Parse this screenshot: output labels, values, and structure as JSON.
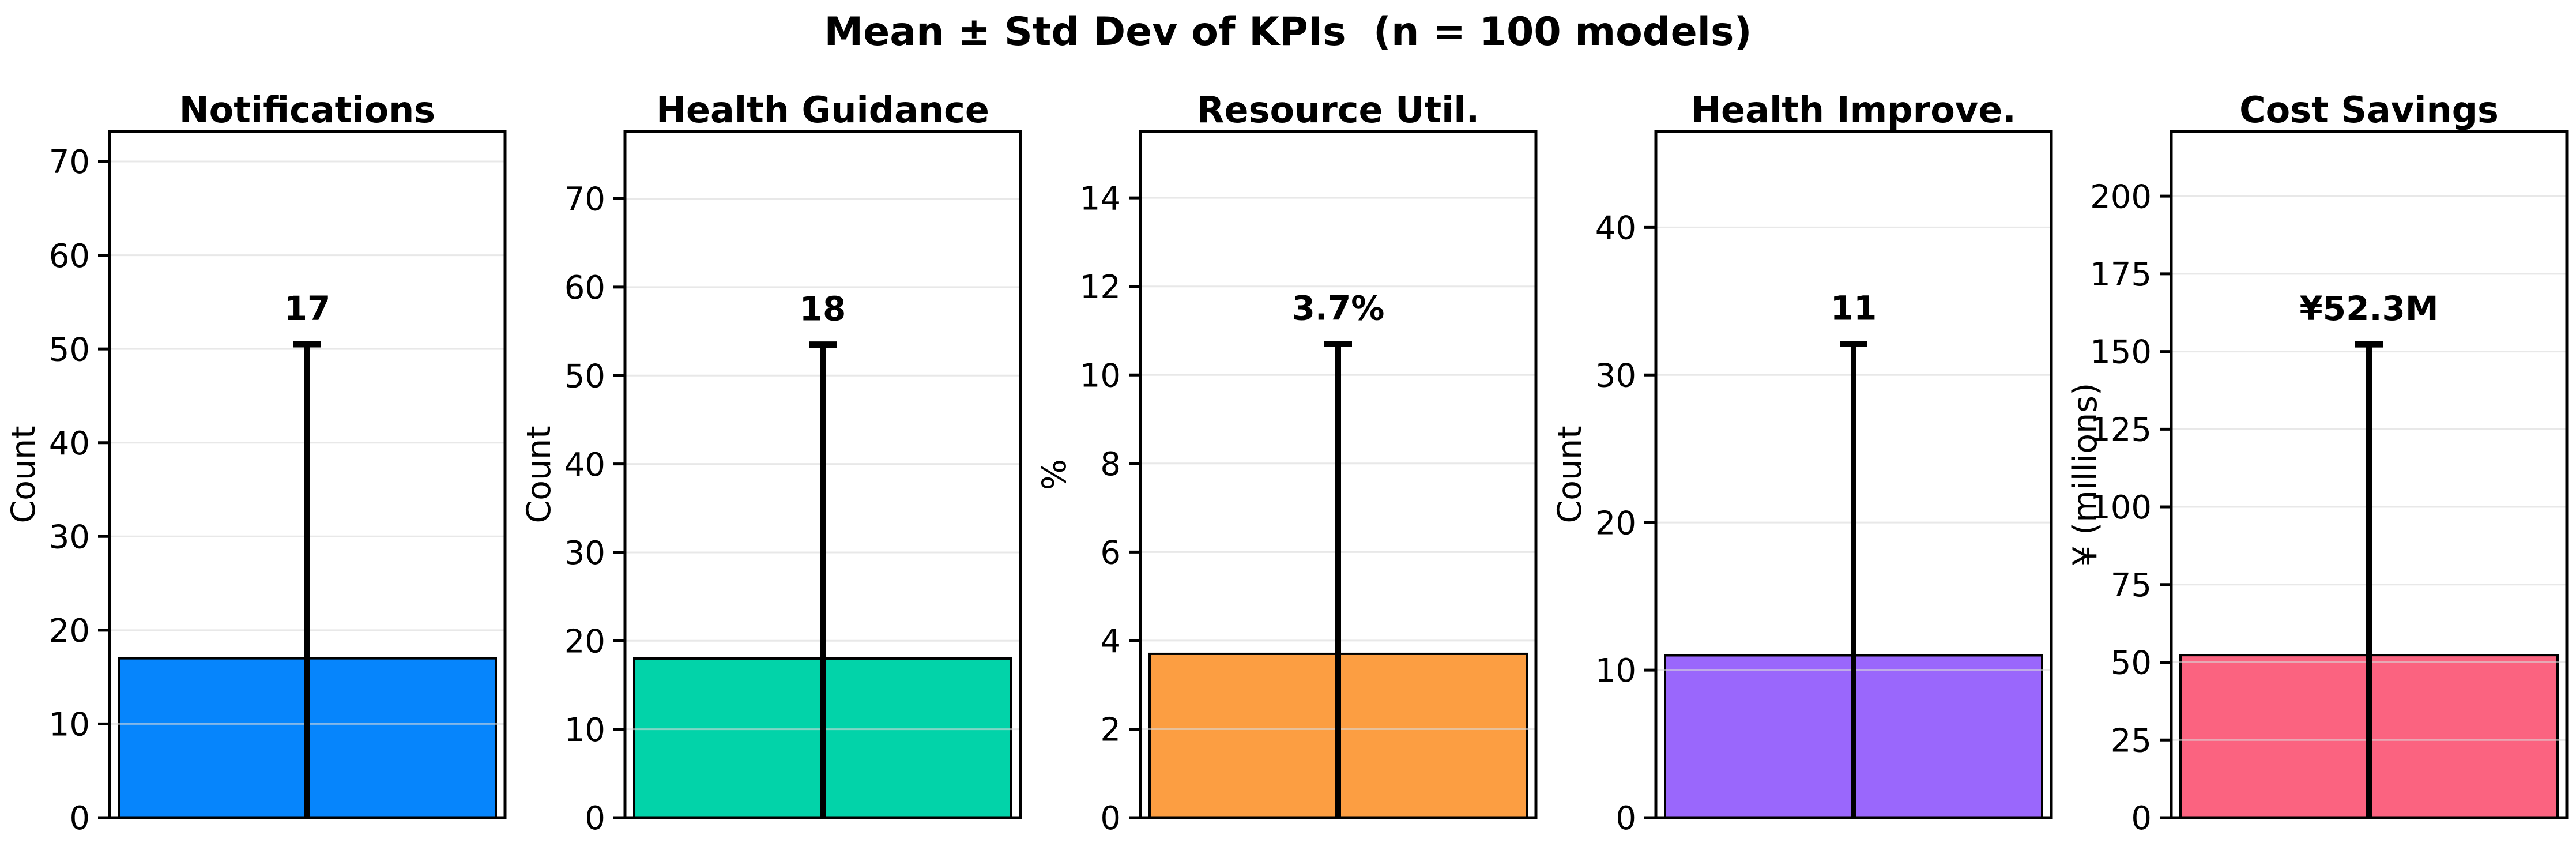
{
  "figure": {
    "title": "Mean ± Std Dev of KPIs  (n = 100 models)",
    "background_color": "#ffffff",
    "n_label_in_title": "n = 100 models"
  },
  "chart_data": [
    {
      "type": "bar",
      "title": "Notifications",
      "ylabel": "Count",
      "mean": 17,
      "value_label": "17",
      "error_top": 50.5,
      "std_estimate": 33.5,
      "bar_color": "#0685FC",
      "bar_edge_color": "#000000",
      "ylim": [
        0,
        73.2
      ],
      "yticks": [
        0,
        10,
        20,
        30,
        40,
        50,
        60,
        70
      ],
      "grid": true
    },
    {
      "type": "bar",
      "title": "Health Guidance",
      "ylabel": "Count",
      "mean": 18,
      "value_label": "18",
      "error_top": 53.5,
      "std_estimate": 35.5,
      "bar_color": "#02D3A9",
      "bar_edge_color": "#000000",
      "ylim": [
        0,
        77.6
      ],
      "yticks": [
        0,
        10,
        20,
        30,
        40,
        50,
        60,
        70
      ],
      "grid": true
    },
    {
      "type": "bar",
      "title": "Resource Util.",
      "ylabel": "%",
      "mean": 3.7,
      "value_label": "3.7%",
      "error_top": 10.7,
      "std_estimate": 7.0,
      "bar_color": "#FC9E42",
      "bar_edge_color": "#000000",
      "ylim": [
        0,
        15.5
      ],
      "yticks": [
        0,
        2,
        4,
        6,
        8,
        10,
        12,
        14
      ],
      "grid": true
    },
    {
      "type": "bar",
      "title": "Health Improve.",
      "ylabel": "Count",
      "mean": 11,
      "value_label": "11",
      "error_top": 32.1,
      "std_estimate": 21.1,
      "bar_color": "#9A67FC",
      "bar_edge_color": "#000000",
      "ylim": [
        0,
        46.5
      ],
      "yticks": [
        0,
        10,
        20,
        30,
        40
      ],
      "grid": true
    },
    {
      "type": "bar",
      "title": "Cost Savings",
      "ylabel": "¥ (millions)",
      "mean": 52.3,
      "value_label": "¥52.3M",
      "error_top": 152.3,
      "std_estimate": 100.0,
      "bar_color": "#FB6380",
      "bar_edge_color": "#000000",
      "ylim": [
        0,
        220.8
      ],
      "yticks": [
        0,
        25,
        50,
        75,
        100,
        125,
        150,
        175,
        200
      ],
      "grid": true
    }
  ]
}
